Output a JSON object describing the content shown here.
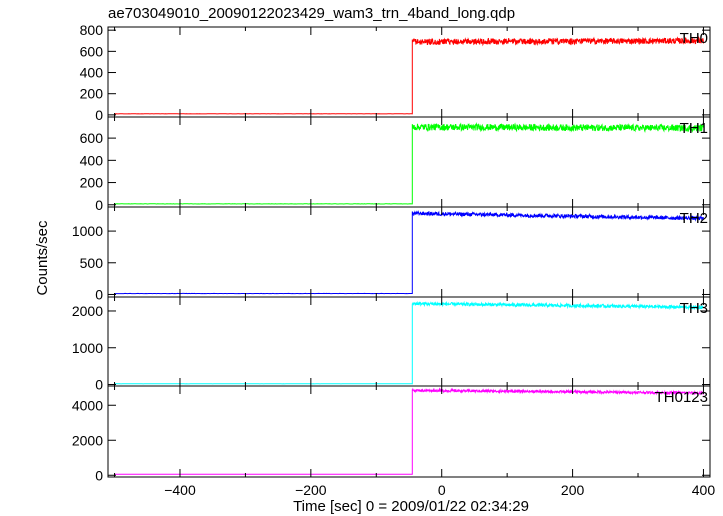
{
  "chart_data": {
    "type": "line",
    "title": "ae703049010_20090122023429_wam3_trn_4band_long.qdp",
    "xlabel": "Time [sec] 0 = 2009/01/22 02:34:29",
    "ylabel": "Counts/sec",
    "xlim": [
      -510,
      410
    ],
    "x_ticks": [
      -400,
      -200,
      0,
      200,
      400
    ],
    "x_tick_labels": [
      "−400",
      "−200",
      "0",
      "200",
      "400"
    ],
    "rise_time": -45,
    "x_end": 400,
    "grid": false,
    "panels": [
      {
        "name": "TH0",
        "color": "#ff0000",
        "ylim": [
          -20,
          830
        ],
        "ticks": [
          0,
          200,
          400,
          600,
          800
        ],
        "pre_level": 10,
        "post_start": 690,
        "post_end": 700,
        "noise": 28
      },
      {
        "name": "TH1",
        "color": "#00ff00",
        "ylim": [
          -20,
          790
        ],
        "ticks": [
          0,
          200,
          400,
          600
        ],
        "pre_level": 8,
        "post_start": 700,
        "post_end": 690,
        "noise": 30
      },
      {
        "name": "TH2",
        "color": "#0000ff",
        "ylim": [
          -40,
          1380
        ],
        "ticks": [
          0,
          500,
          1000
        ],
        "pre_level": 15,
        "post_start": 1280,
        "post_end": 1200,
        "noise": 30
      },
      {
        "name": "TH3",
        "color": "#00ffff",
        "ylim": [
          -40,
          2380
        ],
        "ticks": [
          0,
          1000,
          2000
        ],
        "pre_level": 20,
        "post_start": 2200,
        "post_end": 2100,
        "noise": 45
      },
      {
        "name": "TH0123",
        "color": "#ff00ff",
        "ylim": [
          -100,
          5100
        ],
        "ticks": [
          0,
          2000,
          4000
        ],
        "pre_level": 60,
        "post_start": 4850,
        "post_end": 4700,
        "noise": 70
      }
    ]
  }
}
